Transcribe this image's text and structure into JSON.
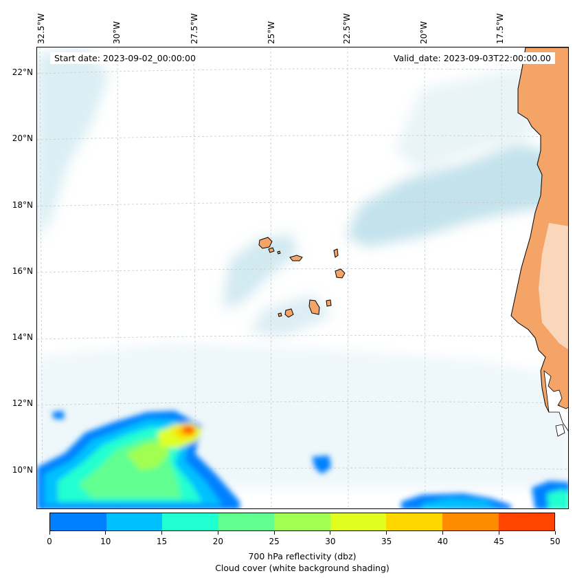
{
  "header": {
    "start_date": "Start date: 2023-09-02_00:00:00",
    "valid_date": "Valid_date: 2023-09-03T22:00:00.00"
  },
  "longitude_labels": [
    "32.5°W",
    "30°W",
    "27.5°W",
    "25°W",
    "22.5°W",
    "20°W",
    "17.5°W"
  ],
  "latitude_labels": [
    "22°N",
    "20°N",
    "18°N",
    "16°N",
    "14°N",
    "12°N",
    "10°N"
  ],
  "colorbar": {
    "ticks": [
      "0",
      "10",
      "15",
      "20",
      "25",
      "30",
      "35",
      "40",
      "45",
      "50"
    ],
    "colors": [
      "#0080ff",
      "#00c0ff",
      "#20ffd0",
      "#60ff90",
      "#a0ff50",
      "#e0ff20",
      "#ffd700",
      "#ff8c00",
      "#ff4500"
    ],
    "label": "700 hPa reflectivity (dbz)",
    "sublabel": "Cloud cover (white background shading)"
  },
  "colors": {
    "land": "#f4a466",
    "cloud": "#bcdfea",
    "grid": "#c8c8c8"
  }
}
